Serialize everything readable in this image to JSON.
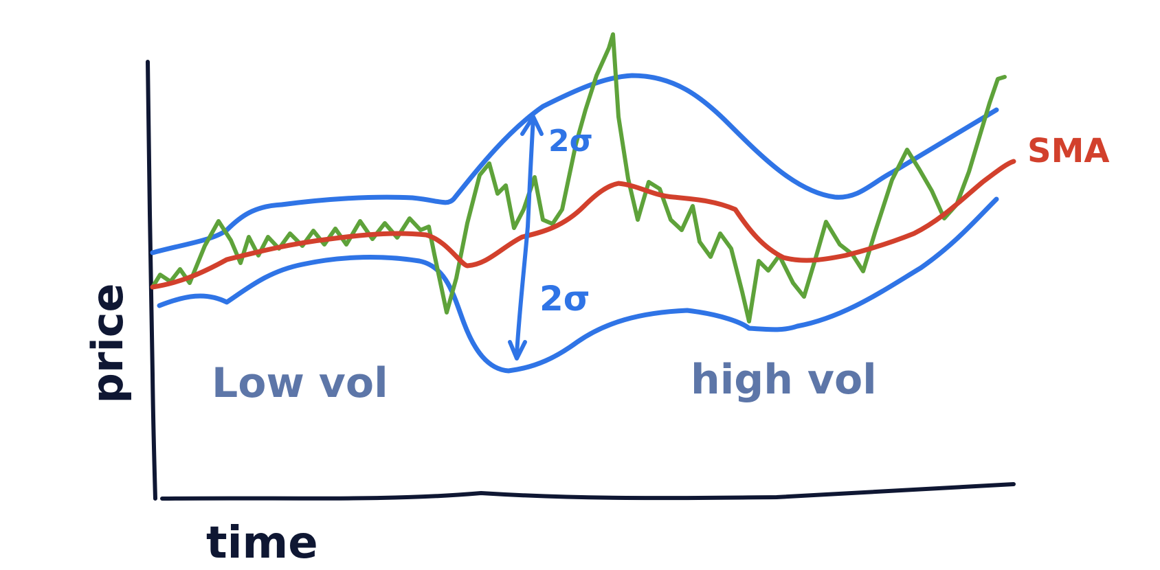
{
  "labels": {
    "y_axis": "price",
    "x_axis": "time",
    "sma": "SMA",
    "sigma_upper": "2σ",
    "sigma_lower": "2σ",
    "region_low": "Low vol",
    "region_high": "high vol"
  },
  "colors": {
    "axis": "#0f1733",
    "band": "#2f74e6",
    "price": "#5ea23a",
    "sma": "#d2402c",
    "region_text": "#5d76a8"
  }
}
